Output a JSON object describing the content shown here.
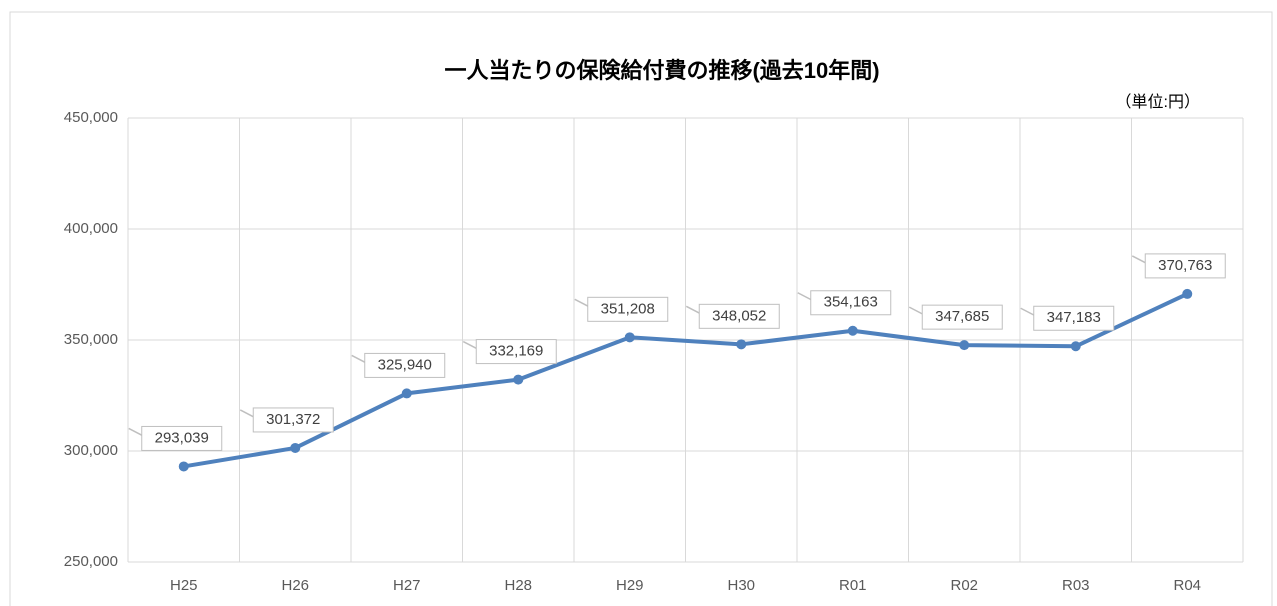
{
  "chart_data": {
    "type": "line",
    "title": "一人当たりの保険給付費の推移(過去10年間)",
    "unit_label": "（単位:円）",
    "categories": [
      "H25",
      "H26",
      "H27",
      "H28",
      "H29",
      "H30",
      "R01",
      "R02",
      "R03",
      "R04"
    ],
    "series": [
      {
        "name": "一人当たりの保険給付費",
        "color": "#4f81bd",
        "values": [
          293039,
          301372,
          325940,
          332169,
          351208,
          348052,
          354163,
          347685,
          347183,
          370763
        ],
        "value_labels": [
          "293,039",
          "301,372",
          "325,940",
          "332,169",
          "351,208",
          "348,052",
          "354,163",
          "347,685",
          "347,183",
          "370,763"
        ]
      }
    ],
    "ylim": [
      250000,
      450000
    ],
    "yticks": [
      {
        "value": 250000,
        "label": "250,000"
      },
      {
        "value": 300000,
        "label": "300,000"
      },
      {
        "value": 350000,
        "label": "350,000"
      },
      {
        "value": 400000,
        "label": "400,000"
      },
      {
        "value": 450000,
        "label": "450,000"
      }
    ],
    "grid": true
  }
}
